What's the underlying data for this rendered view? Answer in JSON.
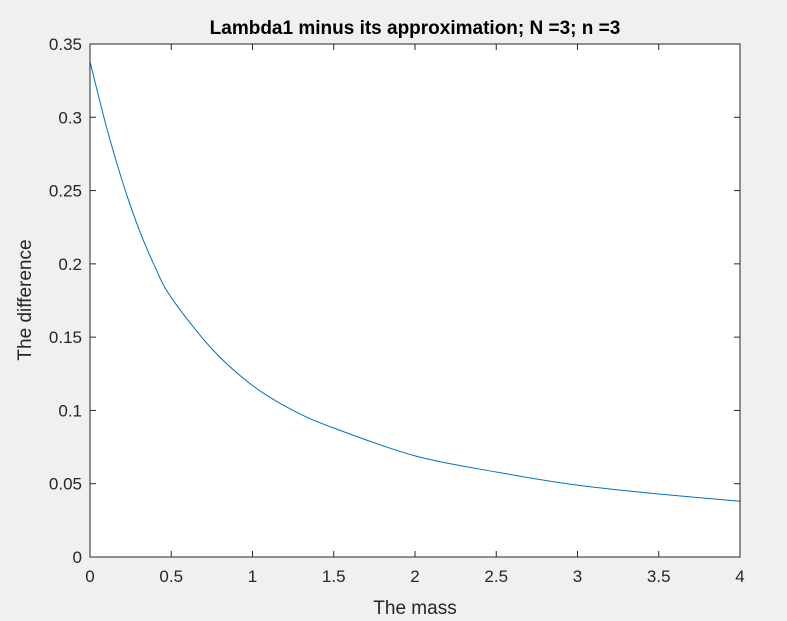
{
  "chart_data": {
    "type": "line",
    "title": "Lambda1 minus its approximation; N =3; n =3",
    "xlabel": "The mass",
    "ylabel": "The difference",
    "xlim": [
      0,
      4
    ],
    "ylim": [
      0,
      0.35
    ],
    "x_ticks": [
      "0",
      "0.5",
      "1",
      "1.5",
      "2",
      "2.5",
      "3",
      "3.5",
      "4"
    ],
    "y_ticks": [
      "0",
      "0.05",
      "0.1",
      "0.15",
      "0.2",
      "0.25",
      "0.3",
      "0.35"
    ],
    "grid": false,
    "series": [
      {
        "color": "#0072bd",
        "x": [
          0,
          0.1,
          0.2,
          0.3,
          0.4,
          0.5,
          0.75,
          1.0,
          1.25,
          1.5,
          2.0,
          2.5,
          3.0,
          3.5,
          4.0
        ],
        "y": [
          0.338,
          0.294,
          0.256,
          0.224,
          0.198,
          0.177,
          0.142,
          0.117,
          0.1,
          0.088,
          0.069,
          0.058,
          0.049,
          0.043,
          0.038
        ]
      }
    ]
  }
}
